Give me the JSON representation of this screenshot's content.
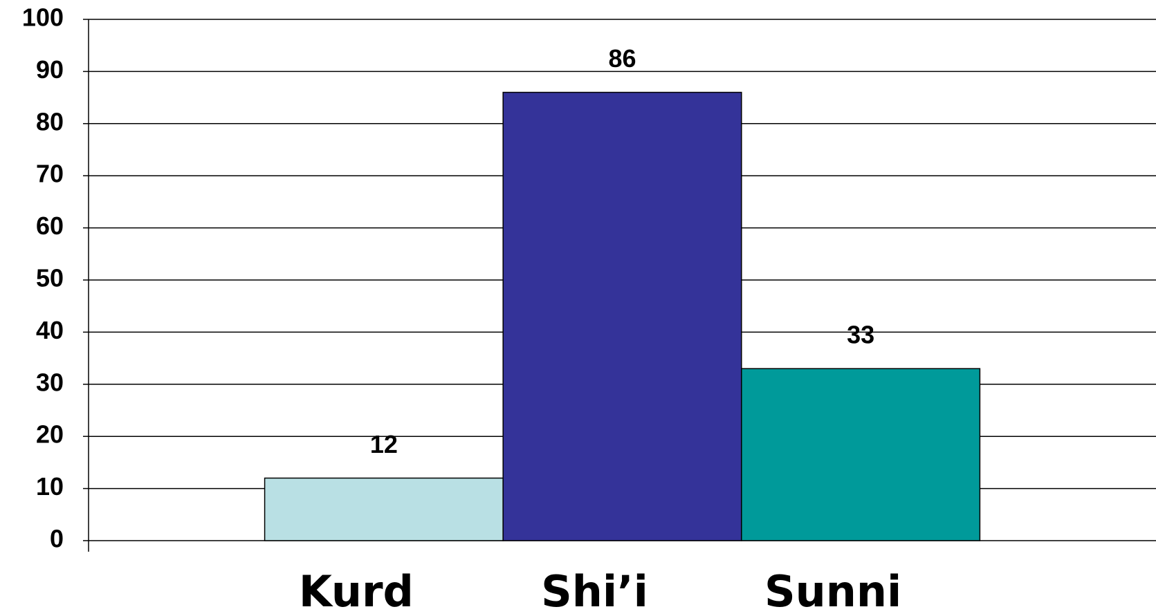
{
  "chart_data": {
    "type": "bar",
    "categories": [
      "Kurd",
      "Shi’i",
      "Sunni"
    ],
    "values": [
      12,
      86,
      33
    ],
    "colors": [
      "#b9e0e4",
      "#343399",
      "#009a9a"
    ],
    "ylim": [
      0,
      100
    ],
    "yticks": [
      0,
      10,
      20,
      30,
      40,
      50,
      60,
      70,
      80,
      90,
      100
    ],
    "grid": true
  }
}
